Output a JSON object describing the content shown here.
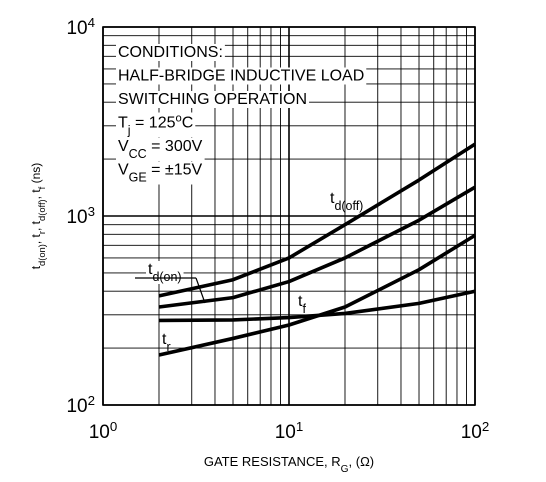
{
  "chart_data": {
    "type": "line",
    "x_label": [
      {
        "text": "GATE RESISTANCE, R"
      },
      {
        "text": "G",
        "sub": true
      },
      {
        "text": ", (Ω)"
      }
    ],
    "y_label": [
      {
        "text": "t"
      },
      {
        "text": "d(on)",
        "sub": true
      },
      {
        "text": ", t"
      },
      {
        "text": "r",
        "sub": true
      },
      {
        "text": ", t"
      },
      {
        "text": "d(off)",
        "sub": true
      },
      {
        "text": ", t"
      },
      {
        "text": "f",
        "sub": true
      },
      {
        "text": " (ns)"
      }
    ],
    "x_scale": "log",
    "y_scale": "log",
    "grid": true,
    "xlim": [
      1,
      100
    ],
    "ylim": [
      100,
      10000
    ],
    "xticks": [
      {
        "value": 1,
        "label": [
          {
            "text": "10"
          },
          {
            "text": "0",
            "sup": true
          }
        ]
      },
      {
        "value": 10,
        "label": [
          {
            "text": "10"
          },
          {
            "text": "1",
            "sup": true
          }
        ]
      },
      {
        "value": 100,
        "label": [
          {
            "text": "10"
          },
          {
            "text": "2",
            "sup": true
          }
        ]
      }
    ],
    "yticks": [
      {
        "value": 100,
        "label": [
          {
            "text": "10"
          },
          {
            "text": "2",
            "sup": true
          }
        ]
      },
      {
        "value": 1000,
        "label": [
          {
            "text": "10"
          },
          {
            "text": "3",
            "sup": true
          }
        ]
      },
      {
        "value": 10000,
        "label": [
          {
            "text": "10"
          },
          {
            "text": "4",
            "sup": true
          }
        ]
      }
    ],
    "xminorticks": [
      2,
      3,
      4,
      5,
      6,
      7,
      8,
      9,
      20,
      30,
      40,
      50,
      60,
      70,
      80,
      90
    ],
    "yminorticks": [
      200,
      300,
      400,
      500,
      600,
      700,
      800,
      900,
      2000,
      3000,
      4000,
      5000,
      6000,
      7000,
      8000,
      9000
    ],
    "conditions": [
      [
        {
          "text": "CONDITIONS:"
        }
      ],
      [
        {
          "text": "HALF-BRIDGE INDUCTIVE LOAD"
        }
      ],
      [
        {
          "text": "SWITCHING OPERATION"
        }
      ],
      [
        {
          "text": "T"
        },
        {
          "text": "j",
          "sub": true
        },
        {
          "text": " = 125"
        },
        {
          "text": "o",
          "sup": true
        },
        {
          "text": "C"
        }
      ],
      [
        {
          "text": "V"
        },
        {
          "text": "CC",
          "sub": true
        },
        {
          "text": " = 300V"
        }
      ],
      [
        {
          "text": "V"
        },
        {
          "text": "GE",
          "sub": true
        },
        {
          "text": " = ±15V"
        }
      ]
    ],
    "x": [
      2,
      5,
      10,
      20,
      50,
      100
    ],
    "series": [
      {
        "label": [
          {
            "text": "t"
          },
          {
            "text": "d(off)",
            "sub": true
          }
        ],
        "color": "#000000",
        "values": [
          378,
          460,
          600,
          900,
          1550,
          2400
        ]
      },
      {
        "label": [
          {
            "text": "t"
          },
          {
            "text": "d(on)",
            "sub": true
          }
        ],
        "color": "#000000",
        "values": [
          330,
          370,
          450,
          600,
          950,
          1420
        ]
      },
      {
        "label": [
          {
            "text": "t"
          },
          {
            "text": "f",
            "sub": true
          }
        ],
        "color": "#000000",
        "values": [
          280,
          282,
          290,
          305,
          345,
          400
        ]
      },
      {
        "label": [
          {
            "text": "t"
          },
          {
            "text": "r",
            "sub": true
          }
        ],
        "color": "#000000",
        "values": [
          184,
          225,
          265,
          330,
          520,
          790
        ]
      }
    ]
  }
}
